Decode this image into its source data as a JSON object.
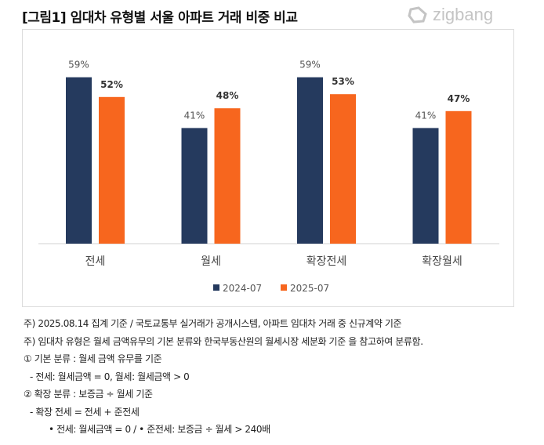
{
  "title": "[그림1] 임대차 유형별 서울 아파트 거래 비중 비교",
  "logo": "zigbang",
  "chart_data": {
    "type": "bar",
    "title": "[그림1] 임대차 유형별 서울 아파트 거래 비중 비교",
    "categories": [
      "전세",
      "월세",
      "확장전세",
      "확장월세"
    ],
    "series": [
      {
        "name": "2024-07",
        "values": [
          59,
          41,
          59,
          41
        ],
        "color": "#253a5e"
      },
      {
        "name": "2025-07",
        "values": [
          52,
          48,
          53,
          47
        ],
        "color": "#f7661e"
      }
    ],
    "unit": "%",
    "ylim": [
      0,
      65
    ],
    "grid": false,
    "legend": "bottom"
  },
  "notes": [
    "주) 2025.08.14 집계 기준 / 국토교통부 실거래가 공개시스템, 아파트 임대차 거래  중 신규계약 기준",
    "주) 임대차 유형은 월세 금액유무의 기본 분류와 한국부동산원의 월세시장 세분화 기준 을 참고하여 분류함.",
    "① 기본 분류 : 월세 금액 유무를 기준",
    "  - 전세: 월세금액 = 0, 월세: 월세금액 > 0",
    "② 확장 분류 : 보증금 ÷ 월세 기준",
    "  - 확장 전세 = 전세 + 준전세",
    "      • 전세: 월세금액 = 0  / • 준전세: 보증금 ÷ 월세 > 240배"
  ]
}
